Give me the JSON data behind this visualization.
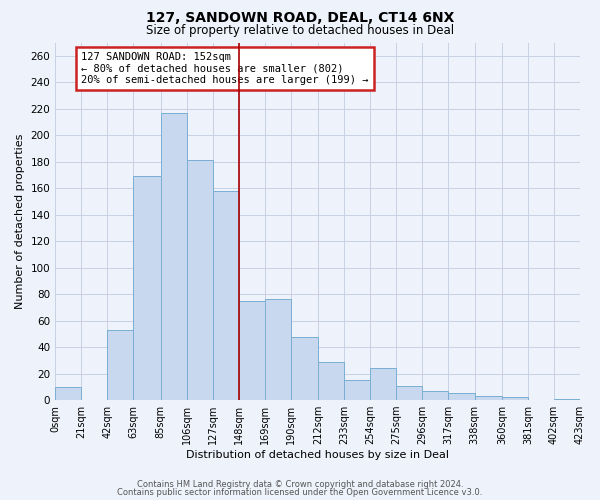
{
  "title": "127, SANDOWN ROAD, DEAL, CT14 6NX",
  "subtitle": "Size of property relative to detached houses in Deal",
  "xlabel": "Distribution of detached houses by size in Deal",
  "ylabel": "Number of detached properties",
  "bar_color": "#c8d8ee",
  "bar_edge_color": "#7aaed4",
  "background_color": "#eef2fb",
  "grid_color": "#c8d0e4",
  "vline_x": 148,
  "vline_color": "#aa0000",
  "bin_edges": [
    0,
    21,
    42,
    63,
    85,
    106,
    127,
    148,
    169,
    190,
    212,
    233,
    254,
    275,
    296,
    317,
    338,
    360,
    381,
    402,
    423
  ],
  "bar_heights": [
    10,
    0,
    53,
    169,
    217,
    181,
    158,
    75,
    76,
    48,
    29,
    15,
    24,
    11,
    7,
    5,
    3,
    2,
    0,
    1
  ],
  "tick_labels": [
    "0sqm",
    "21sqm",
    "42sqm",
    "63sqm",
    "85sqm",
    "106sqm",
    "127sqm",
    "148sqm",
    "169sqm",
    "190sqm",
    "212sqm",
    "233sqm",
    "254sqm",
    "275sqm",
    "296sqm",
    "317sqm",
    "338sqm",
    "360sqm",
    "381sqm",
    "402sqm",
    "423sqm"
  ],
  "ylim": [
    0,
    270
  ],
  "yticks": [
    0,
    20,
    40,
    60,
    80,
    100,
    120,
    140,
    160,
    180,
    200,
    220,
    240,
    260
  ],
  "annotation_line1": "127 SANDOWN ROAD: 152sqm",
  "annotation_line2": "← 80% of detached houses are smaller (802)",
  "annotation_line3": "20% of semi-detached houses are larger (199) →",
  "footer_line1": "Contains HM Land Registry data © Crown copyright and database right 2024.",
  "footer_line2": "Contains public sector information licensed under the Open Government Licence v3.0."
}
